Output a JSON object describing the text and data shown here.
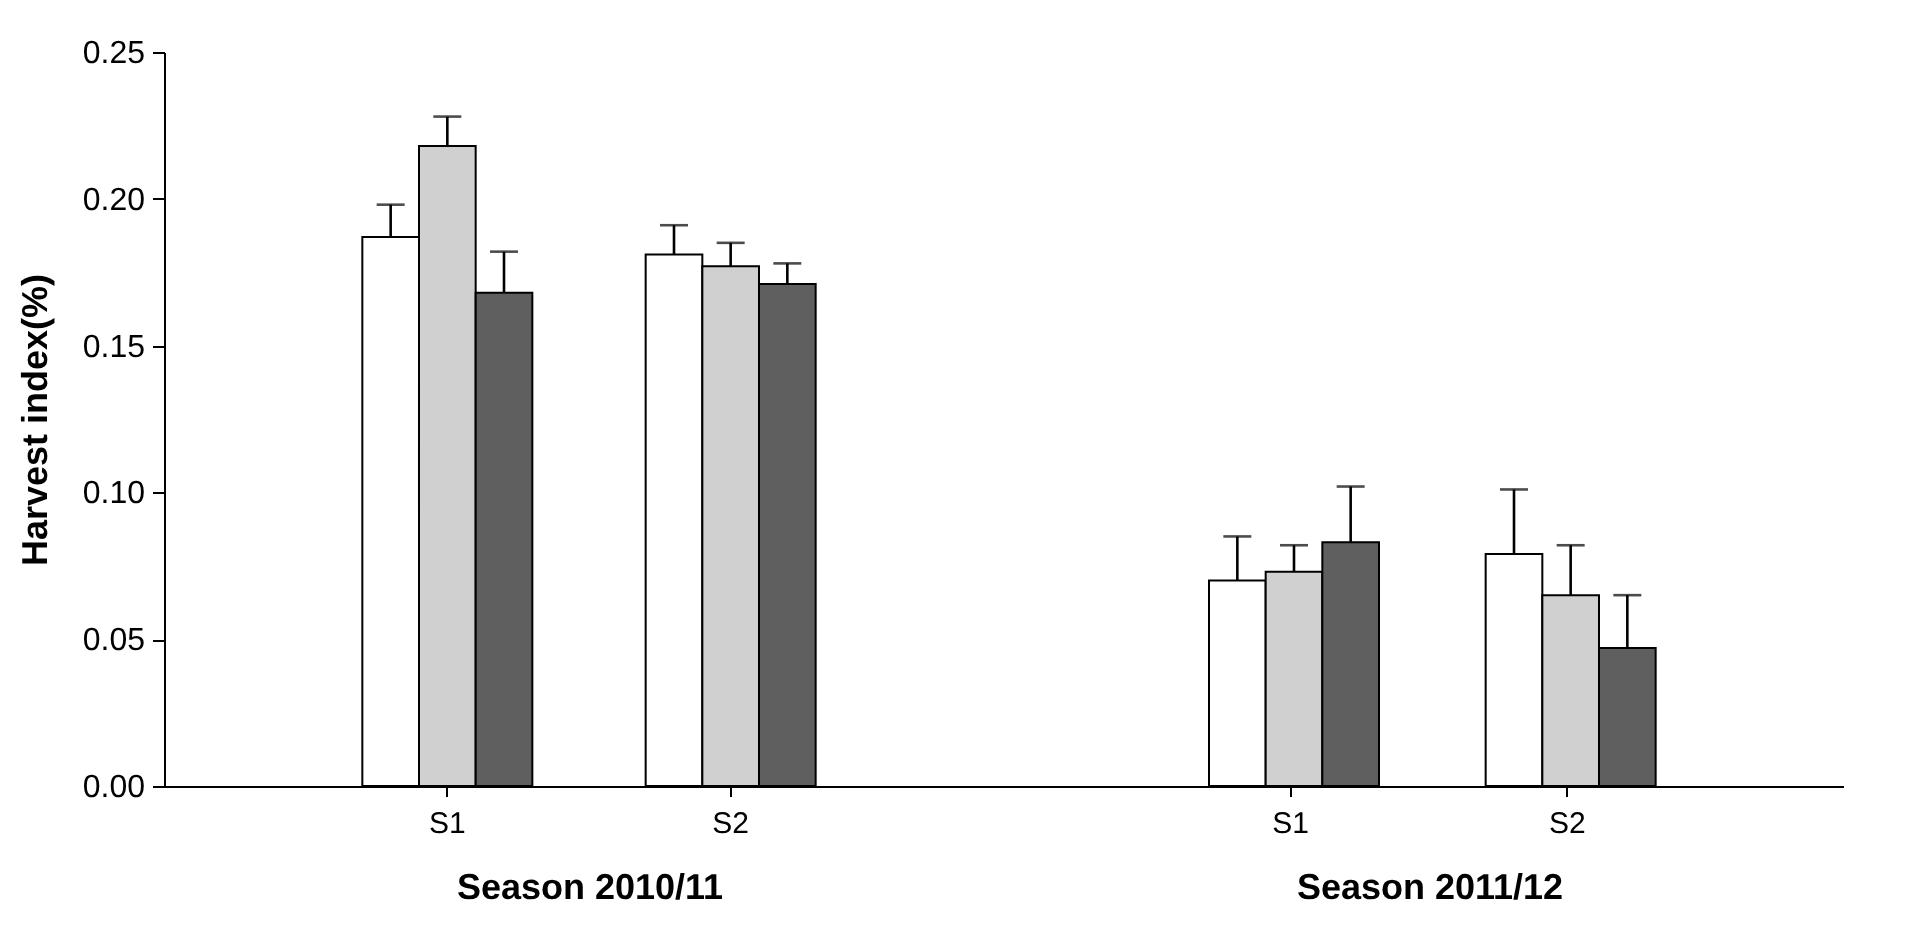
{
  "chart_data": [
    {
      "type": "bar",
      "xlabel": "Season 2010/11",
      "ylabel": "Harvest index(%)",
      "categories": [
        "S1",
        "S2"
      ],
      "ylim": [
        0,
        0.25
      ],
      "yticks": [
        {
          "value": 0,
          "label": "0.00"
        },
        {
          "value": 0.05,
          "label": "0.05"
        },
        {
          "value": 0.1,
          "label": "0.10"
        },
        {
          "value": 0.15,
          "label": "0.15"
        },
        {
          "value": 0.2,
          "label": "0.20"
        },
        {
          "value": 0.25,
          "label": "0.25"
        }
      ],
      "grid": false,
      "series": [
        {
          "color": "#ffffff",
          "values": [
            0.187,
            0.181
          ],
          "errors": [
            [
              0.187,
              0.198
            ],
            [
              0.181,
              0.191
            ]
          ]
        },
        {
          "color": "#d0d0d0",
          "values": [
            0.218,
            0.177
          ],
          "errors": [
            [
              0.218,
              0.228
            ],
            [
              0.177,
              0.185
            ]
          ]
        },
        {
          "color": "#5f5f5f",
          "values": [
            0.168,
            0.171
          ],
          "errors": [
            [
              0.168,
              0.182
            ],
            [
              0.171,
              0.178
            ]
          ]
        }
      ]
    },
    {
      "type": "bar",
      "xlabel": "Season 2011/12",
      "categories": [
        "S1",
        "S2"
      ],
      "ylim": [
        0,
        0.25
      ],
      "tick_labels": "x",
      "grid": false,
      "series": [
        {
          "color": "#ffffff",
          "values": [
            0.07,
            0.079
          ],
          "errors": [
            [
              0.07,
              0.085
            ],
            [
              0.079,
              0.101
            ]
          ]
        },
        {
          "color": "#d0d0d0",
          "values": [
            0.073,
            0.065
          ],
          "errors": [
            [
              0.073,
              0.082
            ],
            [
              0.065,
              0.082
            ]
          ]
        },
        {
          "color": "#5f5f5f",
          "values": [
            0.083,
            0.047
          ],
          "errors": [
            [
              0.083,
              0.102
            ],
            [
              0.047,
              0.065
            ]
          ]
        }
      ]
    }
  ]
}
